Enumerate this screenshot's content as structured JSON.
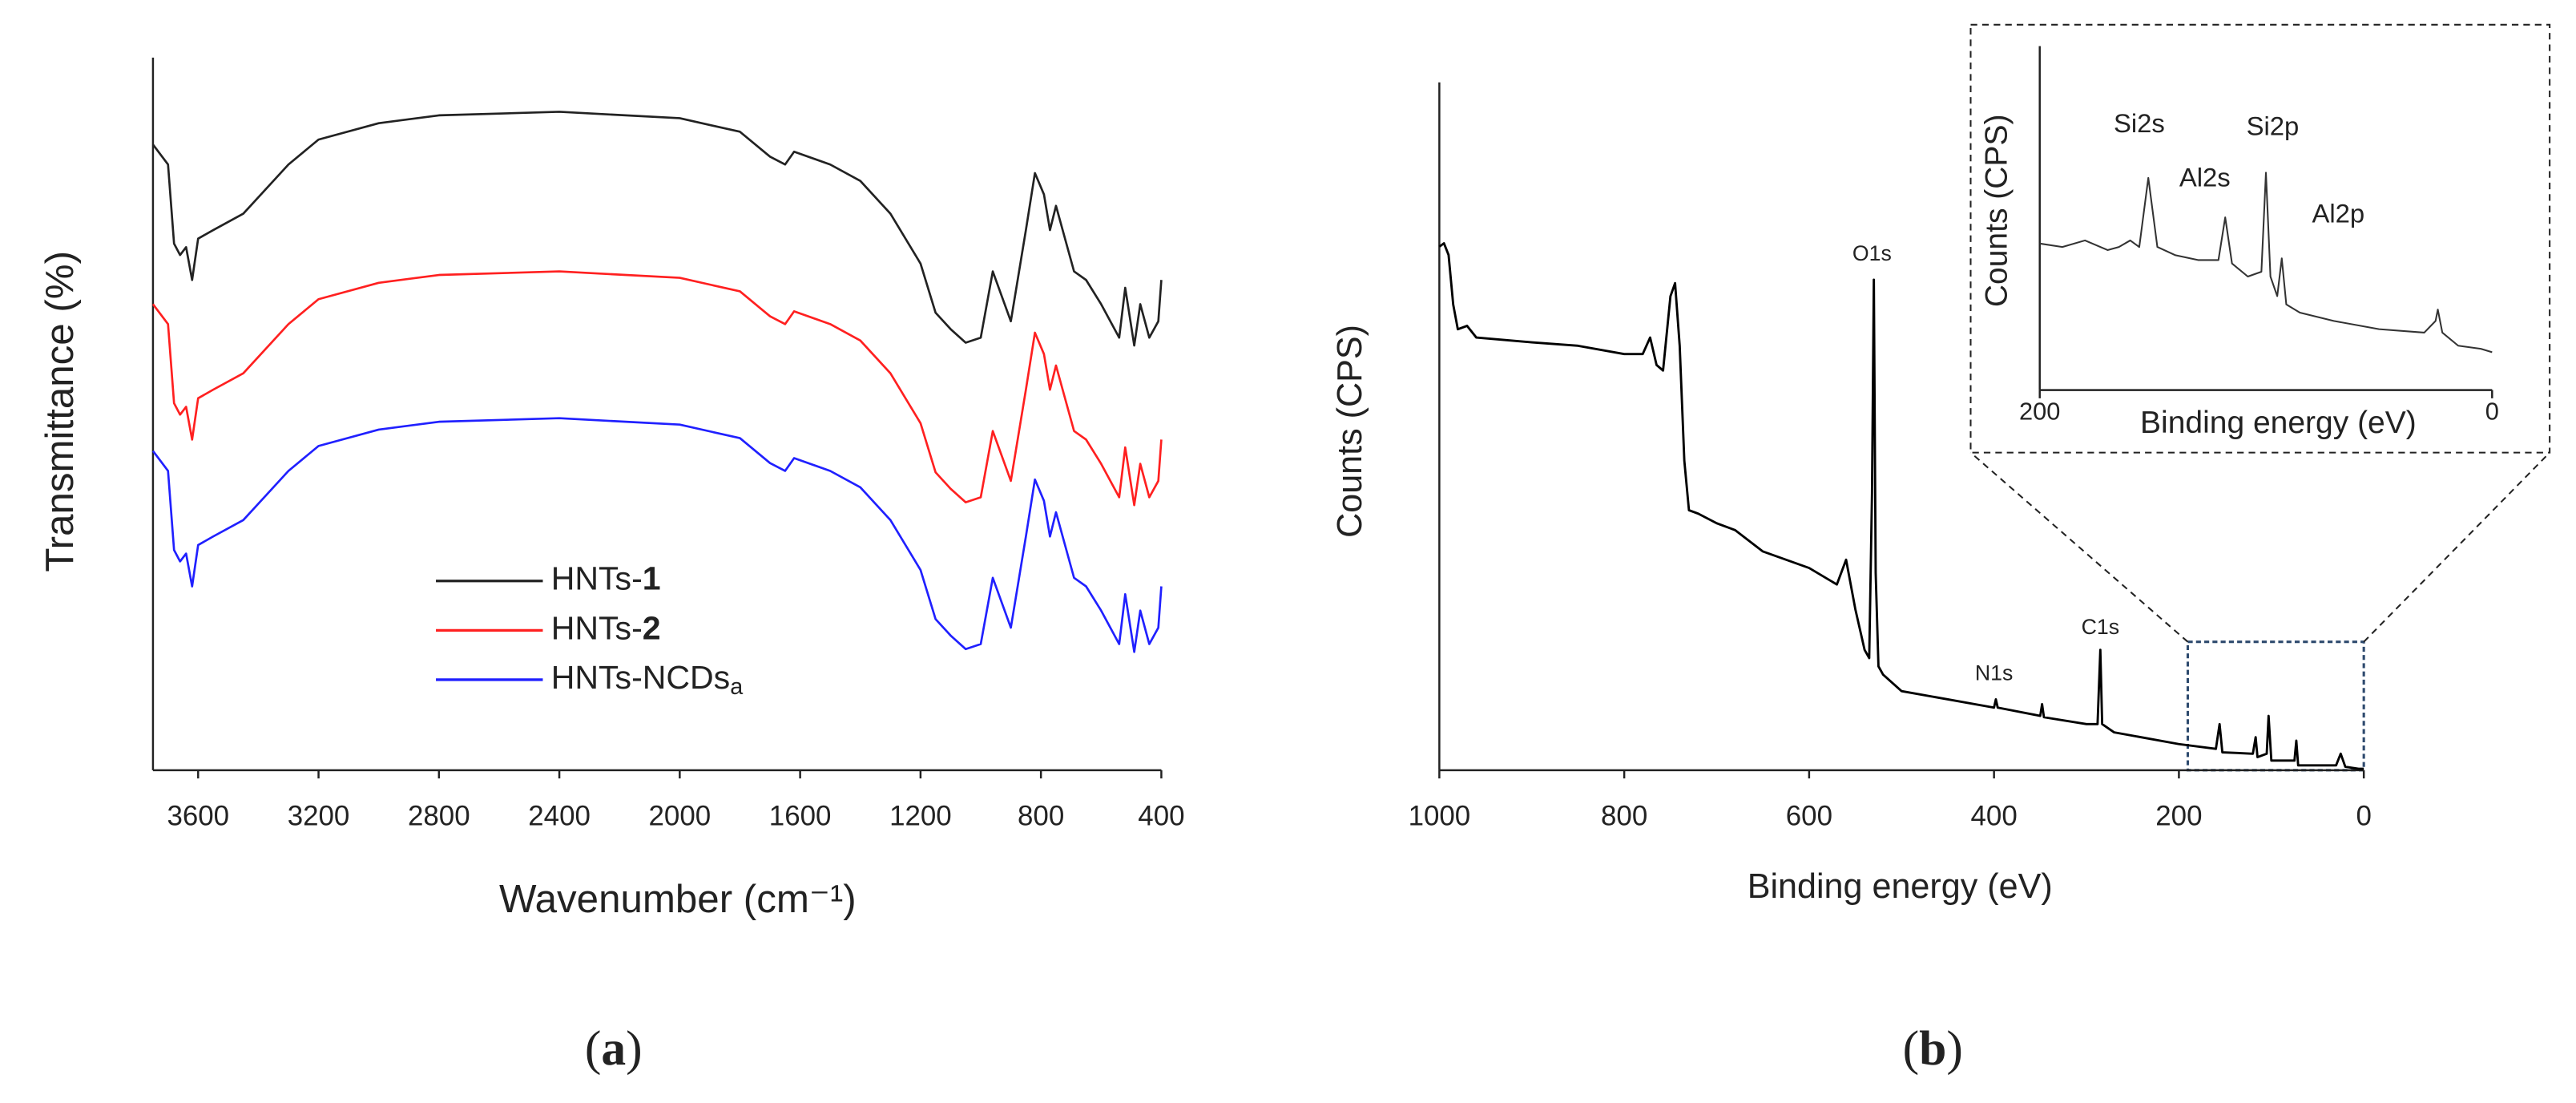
{
  "chart_data": [
    {
      "type": "line",
      "label": "(a)",
      "xlabel": "Wavenumber (cm⁻¹)",
      "ylabel": "Transmittance (%)",
      "xlim": [
        3750,
        400
      ],
      "xticks": [
        3600,
        3200,
        2800,
        2400,
        2000,
        1600,
        1200,
        800,
        400
      ],
      "ylim": [
        0,
        100
      ],
      "x": [
        3750,
        3700,
        3680,
        3660,
        3640,
        3620,
        3600,
        3550,
        3450,
        3300,
        3200,
        3000,
        2800,
        2400,
        2000,
        1800,
        1700,
        1650,
        1620,
        1500,
        1400,
        1300,
        1200,
        1150,
        1100,
        1050,
        1000,
        960,
        930,
        900,
        850,
        820,
        790,
        770,
        750,
        720,
        690,
        650,
        600,
        540,
        520,
        490,
        470,
        440,
        410,
        400
      ],
      "series": [
        {
          "name": "HNTs-1",
          "color": "#222222",
          "values": [
            87.8,
            85.0,
            73.9,
            72.3,
            73.4,
            68.8,
            74.6,
            75.8,
            78.1,
            85.0,
            88.5,
            90.8,
            91.9,
            92.4,
            91.5,
            89.6,
            86.1,
            85.0,
            86.8,
            85.0,
            82.7,
            78.1,
            71.1,
            64.2,
            61.9,
            60.0,
            60.7,
            70.0,
            66.5,
            63.0,
            75.8,
            83.8,
            80.8,
            75.8,
            79.2,
            74.6,
            70.0,
            68.8,
            65.4,
            60.7,
            67.7,
            59.6,
            65.4,
            60.7,
            63.0,
            68.8
          ]
        },
        {
          "name": "HNTs-2",
          "color": "#ff2020",
          "values": [
            65.4,
            62.6,
            51.5,
            49.9,
            51.0,
            46.4,
            52.2,
            53.4,
            55.7,
            62.6,
            66.1,
            68.4,
            69.5,
            70.0,
            69.1,
            67.2,
            63.7,
            62.6,
            64.4,
            62.6,
            60.3,
            55.7,
            48.7,
            41.8,
            39.5,
            37.6,
            38.3,
            47.6,
            44.1,
            40.6,
            53.4,
            61.4,
            58.4,
            53.4,
            56.8,
            52.2,
            47.6,
            46.4,
            43.0,
            38.3,
            45.3,
            37.2,
            43.0,
            38.3,
            40.6,
            46.4
          ]
        },
        {
          "name": "HNTs-NCDsa",
          "color": "#2020ff",
          "values": [
            44.8,
            42.0,
            30.9,
            29.3,
            30.4,
            25.8,
            31.6,
            32.8,
            35.1,
            42.0,
            45.5,
            47.8,
            48.9,
            49.4,
            48.5,
            46.6,
            43.1,
            42.0,
            43.8,
            42.0,
            39.7,
            35.1,
            28.1,
            21.2,
            18.9,
            17.0,
            17.7,
            27.0,
            23.5,
            20.0,
            32.8,
            40.8,
            37.8,
            32.8,
            36.2,
            31.6,
            27.0,
            25.8,
            22.4,
            17.7,
            24.7,
            16.6,
            22.4,
            17.7,
            20.0,
            25.8
          ]
        }
      ]
    },
    {
      "type": "line",
      "label": "(b)",
      "xlabel": "Binding energy (eV)",
      "ylabel": "Counts (CPS)",
      "xlim": [
        1000,
        0
      ],
      "xticks": [
        1000,
        800,
        600,
        400,
        200,
        0
      ],
      "ylim": [
        0,
        100
      ],
      "x": [
        1000,
        995,
        990,
        985,
        980,
        970,
        960,
        900,
        850,
        800,
        780,
        772,
        765,
        758,
        750,
        745,
        740,
        735,
        730,
        720,
        700,
        680,
        650,
        600,
        570,
        560,
        550,
        540,
        535,
        532,
        530,
        528,
        525,
        520,
        500,
        450,
        400,
        398,
        396,
        350,
        348,
        346,
        300,
        288,
        285,
        283,
        270,
        200,
        160,
        156,
        153,
        120,
        117,
        115,
        105,
        103,
        100,
        75,
        73,
        71,
        30,
        25,
        20,
        5,
        0
      ],
      "series": [
        {
          "color": "#000000",
          "values": [
            76.1,
            76.6,
            74.9,
            67.7,
            64.1,
            64.6,
            62.9,
            62.2,
            61.7,
            60.5,
            60.5,
            62.9,
            58.9,
            58.1,
            68.9,
            70.8,
            61.7,
            45.0,
            37.8,
            37.3,
            35.9,
            34.9,
            31.8,
            29.4,
            27.0,
            30.6,
            23.4,
            17.5,
            16.3,
            40.2,
            71.3,
            28.7,
            15.1,
            13.9,
            11.5,
            10.3,
            9.1,
            10.3,
            9.1,
            7.9,
            9.6,
            7.7,
            6.7,
            6.7,
            17.5,
            6.7,
            5.5,
            3.8,
            3.1,
            6.7,
            2.6,
            2.4,
            4.8,
            1.9,
            2.4,
            7.9,
            1.4,
            1.4,
            4.3,
            0.7,
            0.7,
            2.4,
            0.5,
            0.2,
            0.2
          ]
        }
      ],
      "annotations": [
        {
          "text": "O1s",
          "x": 532,
          "y": 74.9
        },
        {
          "text": "N1s",
          "x": 400,
          "y": 13.9
        },
        {
          "text": "C1s",
          "x": 285,
          "y": 20.6
        }
      ]
    },
    {
      "type": "line",
      "xlabel": "Binding energy (eV)",
      "ylabel": "Counts (CPS)",
      "xlim": [
        200,
        0
      ],
      "xticks": [
        200,
        0
      ],
      "ylim": [
        0,
        100
      ],
      "x": [
        200,
        190,
        180,
        170,
        165,
        160,
        156,
        152,
        148,
        140,
        130,
        121,
        118,
        115,
        108,
        102,
        100,
        98,
        95,
        93,
        91,
        85,
        70,
        50,
        30,
        25,
        24,
        22,
        15,
        5,
        0
      ],
      "series": [
        {
          "color": "#333333",
          "values": [
            42.6,
            41.6,
            43.5,
            40.7,
            41.6,
            43.5,
            41.6,
            61.7,
            41.6,
            39.2,
            37.8,
            37.8,
            50.2,
            36.8,
            33.0,
            34.4,
            63.2,
            33.0,
            27.3,
            38.3,
            24.9,
            22.5,
            20.1,
            17.7,
            16.7,
            20.1,
            23.4,
            16.7,
            12.9,
            12.0,
            11.0
          ]
        }
      ],
      "annotations": [
        {
          "text": "Si2s",
          "x": 156,
          "y": 77.0
        },
        {
          "text": "Al2s",
          "x": 127,
          "y": 61.2
        },
        {
          "text": "Si2p",
          "x": 97,
          "y": 76.1
        },
        {
          "text": "Al2p",
          "x": 68,
          "y": 50.7
        }
      ]
    }
  ]
}
